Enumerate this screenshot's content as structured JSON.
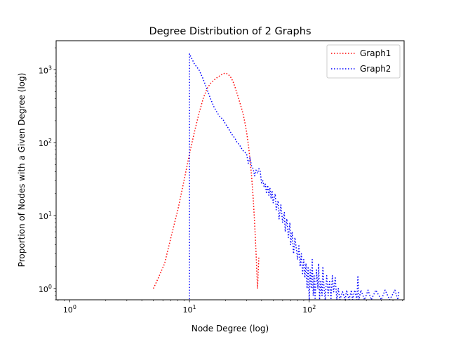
{
  "chart_data": {
    "type": "line",
    "title": "Degree Distribution of 2 Graphs",
    "xlabel": "Node Degree (log)",
    "ylabel": "Proportion of Nodes with a Given Degree (log)",
    "xscale": "log",
    "yscale": "log",
    "xlim": [
      0.77,
      620
    ],
    "ylim": [
      0.7,
      2500
    ],
    "xticks": [
      {
        "value": 1,
        "base": "10",
        "exp": "0"
      },
      {
        "value": 10,
        "base": "10",
        "exp": "1"
      },
      {
        "value": 100,
        "base": "10",
        "exp": "2"
      }
    ],
    "yticks": [
      {
        "value": 1,
        "base": "10",
        "exp": "0"
      },
      {
        "value": 10,
        "base": "10",
        "exp": "1"
      },
      {
        "value": 100,
        "base": "10",
        "exp": "2"
      },
      {
        "value": 1000,
        "base": "10",
        "exp": "3"
      }
    ],
    "grid": false,
    "legend_position": "upper right",
    "series": [
      {
        "name": "Graph1",
        "color": "#ff0000",
        "linestyle": "dotted",
        "points": [
          [
            5,
            1
          ],
          [
            5.5,
            1.4
          ],
          [
            6.2,
            2.2
          ],
          [
            7,
            5
          ],
          [
            8,
            12
          ],
          [
            9,
            30
          ],
          [
            10,
            70
          ],
          [
            11,
            140
          ],
          [
            12,
            250
          ],
          [
            13,
            400
          ],
          [
            14,
            550
          ],
          [
            15,
            650
          ],
          [
            16,
            720
          ],
          [
            17,
            780
          ],
          [
            18,
            830
          ],
          [
            19,
            880
          ],
          [
            20,
            900
          ],
          [
            21,
            870
          ],
          [
            22,
            800
          ],
          [
            23,
            700
          ],
          [
            24,
            580
          ],
          [
            25,
            470
          ],
          [
            26,
            380
          ],
          [
            27,
            310
          ],
          [
            28,
            250
          ],
          [
            29,
            190
          ],
          [
            30,
            140
          ],
          [
            31,
            95
          ],
          [
            32,
            60
          ],
          [
            33,
            35
          ],
          [
            34,
            18
          ],
          [
            35,
            8
          ],
          [
            36,
            3
          ],
          [
            37,
            1
          ],
          [
            38,
            2.8
          ]
        ]
      },
      {
        "name": "Graph2",
        "color": "#0000ff",
        "linestyle": "dotted",
        "points": [
          [
            10,
            0.5
          ],
          [
            10,
            1650
          ],
          [
            10.5,
            1400
          ],
          [
            11,
            1200
          ],
          [
            12,
            1000
          ],
          [
            13,
            750
          ],
          [
            14,
            540
          ],
          [
            15,
            400
          ],
          [
            16,
            310
          ],
          [
            17,
            260
          ],
          [
            18,
            225
          ],
          [
            19,
            210
          ],
          [
            20,
            180
          ],
          [
            21,
            160
          ],
          [
            22,
            140
          ],
          [
            23,
            125
          ],
          [
            24,
            115
          ],
          [
            25,
            100
          ],
          [
            26,
            95
          ],
          [
            27,
            85
          ],
          [
            28,
            78
          ],
          [
            30,
            70
          ],
          [
            31,
            52
          ],
          [
            32,
            62
          ],
          [
            33,
            48
          ],
          [
            34,
            44
          ],
          [
            35,
            35
          ],
          [
            36,
            42
          ],
          [
            37,
            38
          ],
          [
            38,
            44
          ],
          [
            39,
            40
          ],
          [
            40,
            28
          ],
          [
            41,
            30
          ],
          [
            42,
            25
          ],
          [
            43,
            27
          ],
          [
            44,
            20
          ],
          [
            45,
            26
          ],
          [
            46,
            19
          ],
          [
            47,
            24
          ],
          [
            48,
            17
          ],
          [
            49,
            22
          ],
          [
            50,
            15
          ],
          [
            52,
            20
          ],
          [
            53,
            12
          ],
          [
            55,
            16
          ],
          [
            56,
            9
          ],
          [
            58,
            14
          ],
          [
            60,
            8
          ],
          [
            62,
            11
          ],
          [
            63,
            6
          ],
          [
            65,
            9
          ],
          [
            67,
            5
          ],
          [
            69,
            8
          ],
          [
            70,
            4
          ],
          [
            72,
            6
          ],
          [
            74,
            3
          ],
          [
            76,
            5
          ],
          [
            78,
            3.5
          ],
          [
            80,
            2.5
          ],
          [
            82,
            4
          ],
          [
            84,
            2
          ],
          [
            86,
            3
          ],
          [
            88,
            1.6
          ],
          [
            90,
            2.5
          ],
          [
            92,
            1.4
          ],
          [
            94,
            2.2
          ],
          [
            96,
            1
          ],
          [
            98,
            2
          ],
          [
            100,
            0.7
          ],
          [
            102,
            1.8
          ],
          [
            104,
            1
          ],
          [
            106,
            2.5
          ],
          [
            108,
            0.8
          ],
          [
            110,
            1.5
          ],
          [
            112,
            0.7
          ],
          [
            115,
            1.8
          ],
          [
            118,
            1
          ],
          [
            120,
            2.2
          ],
          [
            122,
            0.7
          ],
          [
            125,
            1.3
          ],
          [
            128,
            0.8
          ],
          [
            130,
            2
          ],
          [
            133,
            1
          ],
          [
            136,
            0.7
          ],
          [
            140,
            1.5
          ],
          [
            144,
            0.8
          ],
          [
            148,
            1.3
          ],
          [
            152,
            0.7
          ],
          [
            156,
            1.5
          ],
          [
            160,
            0.9
          ],
          [
            165,
            1.4
          ],
          [
            170,
            0.7
          ],
          [
            175,
            1
          ],
          [
            180,
            0.7
          ],
          [
            190,
            0.9
          ],
          [
            200,
            0.7
          ],
          [
            205,
            0.95
          ],
          [
            215,
            0.7
          ],
          [
            225,
            0.95
          ],
          [
            230,
            0.7
          ],
          [
            240,
            0.95
          ],
          [
            250,
            0.7
          ],
          [
            255,
            1.5
          ],
          [
            260,
            0.7
          ],
          [
            270,
            0.95
          ],
          [
            290,
            0.7
          ],
          [
            310,
            0.95
          ],
          [
            330,
            0.7
          ],
          [
            360,
            0.95
          ],
          [
            400,
            0.7
          ],
          [
            430,
            0.95
          ],
          [
            470,
            0.7
          ],
          [
            520,
            0.95
          ],
          [
            550,
            0.7
          ],
          [
            560,
            0.9
          ]
        ]
      }
    ]
  }
}
